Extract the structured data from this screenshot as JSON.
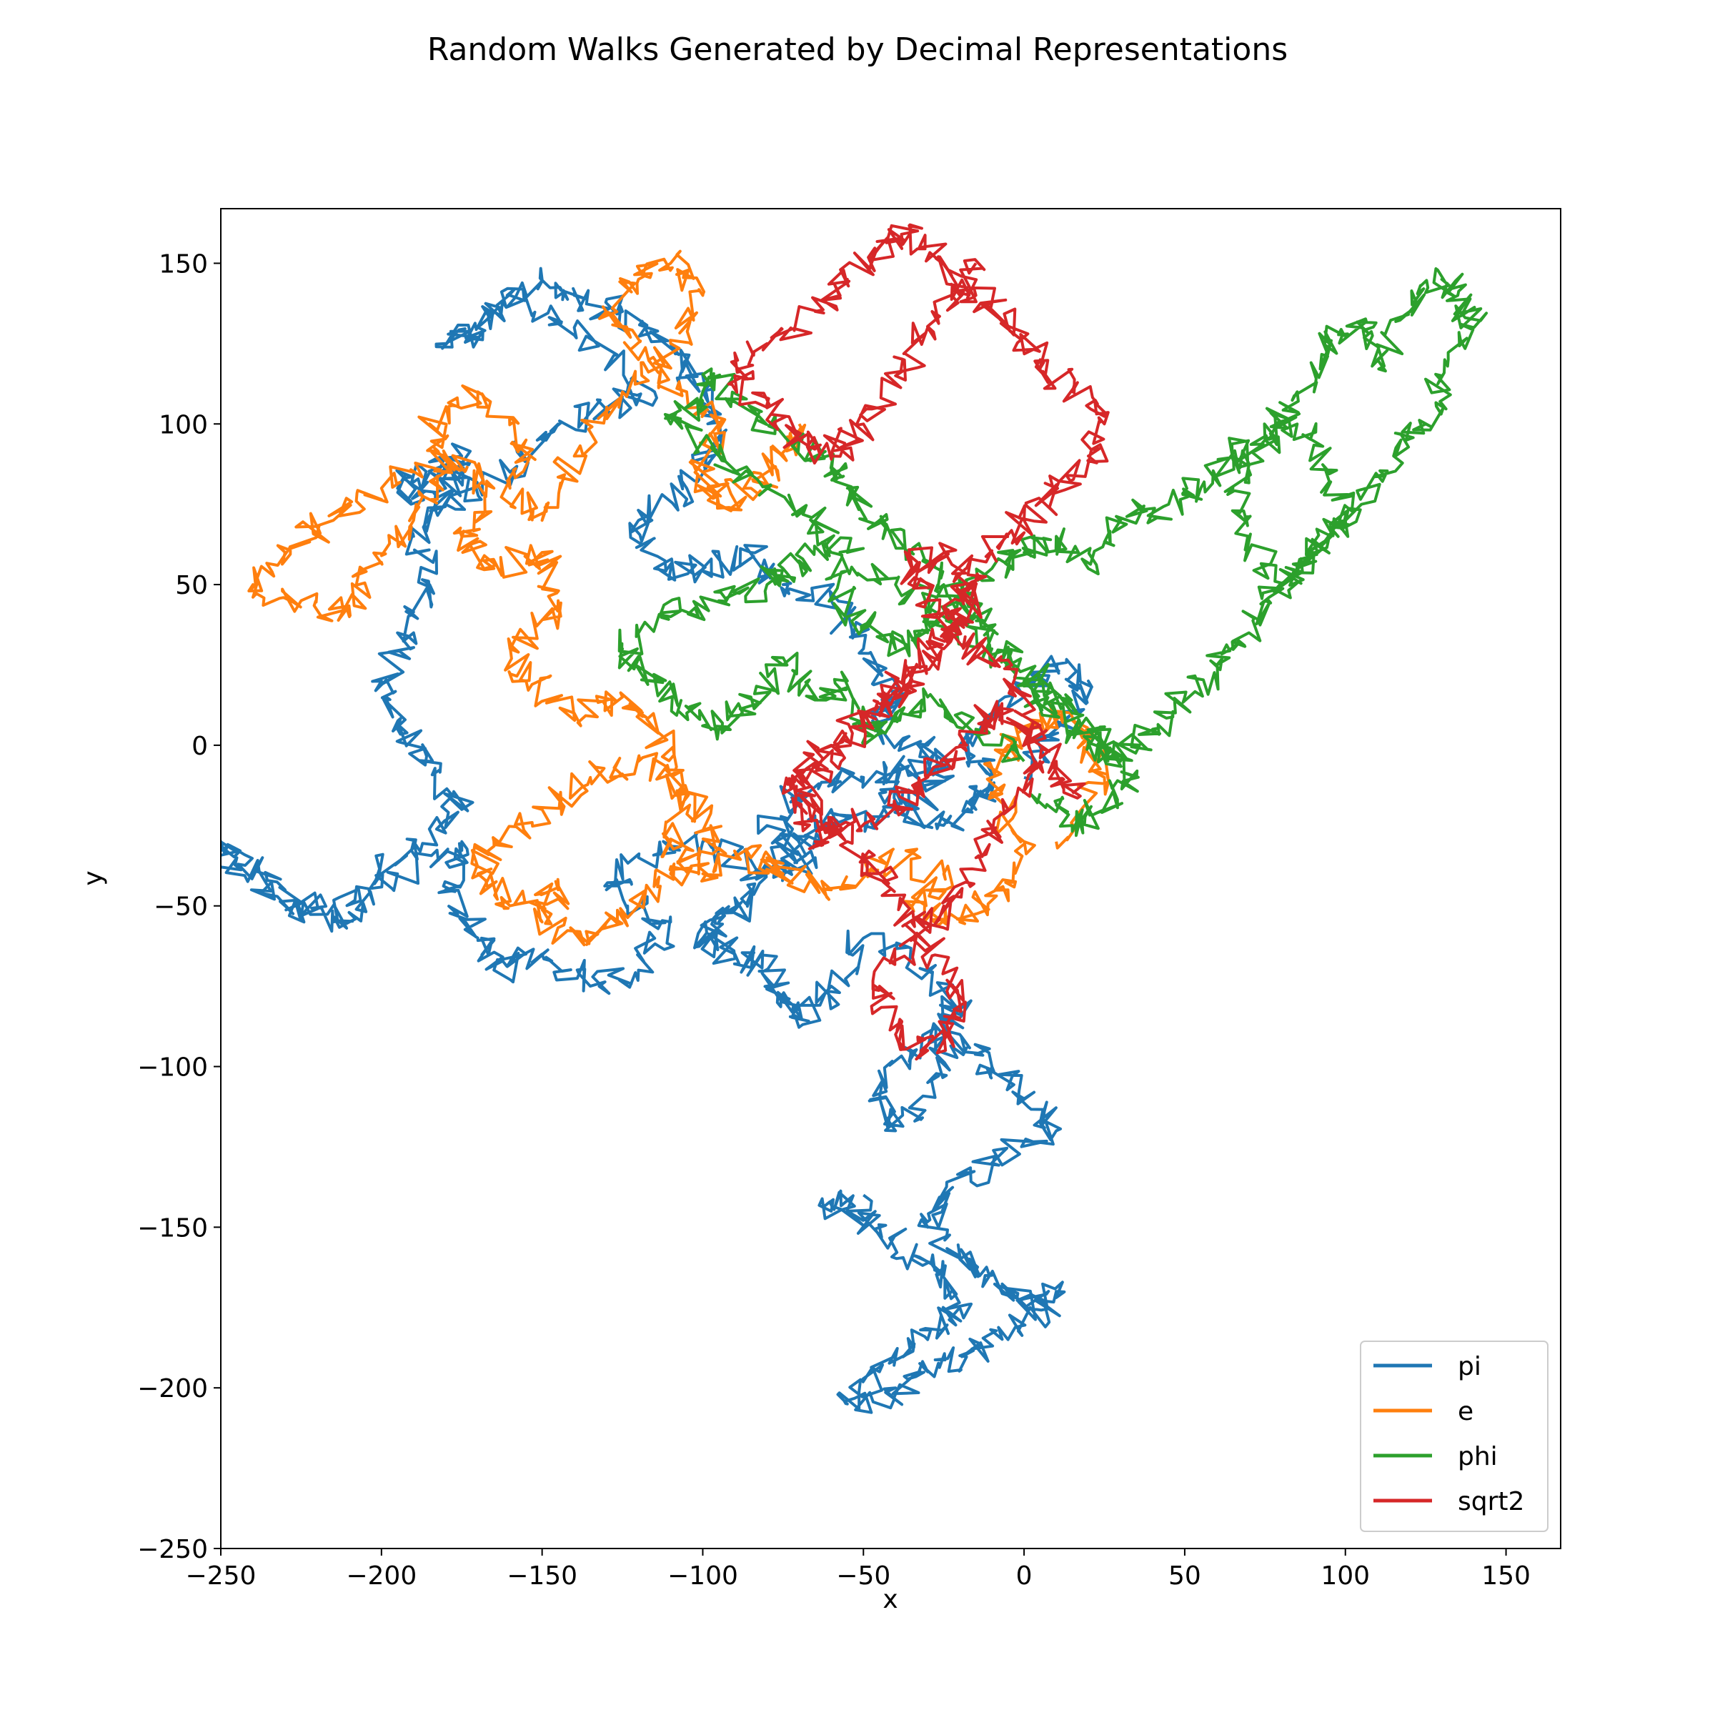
{
  "chart_data": {
    "type": "line",
    "title": "Random Walks Generated by Decimal Representations",
    "xlabel": "x",
    "ylabel": "y",
    "xlim": [
      -250,
      167
    ],
    "ylim": [
      -250,
      167
    ],
    "xticks": [
      -250,
      -200,
      -150,
      -100,
      -50,
      0,
      50,
      100,
      150
    ],
    "yticks": [
      -250,
      -200,
      -150,
      -100,
      -50,
      0,
      50,
      100,
      150
    ],
    "xtick_labels": [
      "−250",
      "−200",
      "−150",
      "−100",
      "−50",
      "0",
      "50",
      "100",
      "150"
    ],
    "ytick_labels": [
      "−250",
      "−200",
      "−150",
      "−100",
      "−50",
      "0",
      "50",
      "100",
      "150"
    ],
    "grid": false,
    "legend_position": "lower-right",
    "series": [
      {
        "name": "pi",
        "color": "#1f77b4",
        "x": [
          0,
          10,
          20,
          10,
          0,
          -20,
          -10,
          -15,
          -30,
          -45,
          -30,
          -50,
          -70,
          -80,
          -65,
          -80,
          -100,
          -120,
          -130,
          -110,
          -120,
          -135,
          -150,
          -165,
          -170,
          -180,
          -175,
          -195,
          -210,
          -230,
          -245,
          -250,
          -230,
          -215,
          -200,
          -190,
          -175,
          -185,
          -195,
          -200,
          -190,
          -185,
          -190,
          -180,
          -175,
          -185,
          -195,
          -180,
          -160,
          -145,
          -130,
          -115,
          -140,
          -160,
          -170,
          -180,
          -165,
          -150,
          -140,
          -125,
          -110,
          -100,
          -95,
          -105,
          -120,
          -115,
          -100,
          -85,
          -75,
          -60,
          -50,
          -40,
          -45,
          -30,
          -25,
          -35,
          -50,
          -60,
          -70,
          -80,
          -85,
          -95,
          -100,
          -90,
          -80,
          -75,
          -70,
          -60,
          -50,
          -30,
          -20,
          -35,
          -45,
          -40,
          -30,
          -20,
          -10,
          0,
          10,
          -10,
          -25,
          -30,
          -20,
          -10,
          0,
          10,
          -5,
          -20,
          -30,
          -40,
          -55,
          -45,
          -30,
          -20,
          -25,
          -35,
          -45,
          -60,
          -50
        ],
        "y": [
          -10,
          5,
          20,
          25,
          15,
          0,
          -10,
          -20,
          -25,
          -15,
          -5,
          -10,
          -15,
          -25,
          -35,
          -40,
          -30,
          -35,
          -45,
          -55,
          -70,
          -75,
          -65,
          -70,
          -60,
          -45,
          -30,
          -40,
          -55,
          -50,
          -35,
          -30,
          -45,
          -55,
          -40,
          -30,
          -20,
          -5,
          5,
          20,
          35,
          50,
          65,
          80,
          90,
          85,
          80,
          75,
          85,
          100,
          105,
          110,
          130,
          140,
          130,
          125,
          135,
          145,
          140,
          135,
          125,
          110,
          95,
          80,
          70,
          55,
          55,
          60,
          50,
          45,
          30,
          15,
          5,
          0,
          -10,
          -20,
          -25,
          -20,
          -30,
          -40,
          -50,
          -55,
          -60,
          -65,
          -70,
          -80,
          -85,
          -75,
          -60,
          -70,
          -85,
          -95,
          -110,
          -120,
          -105,
          -90,
          -100,
          -110,
          -120,
          -130,
          -140,
          -150,
          -160,
          -165,
          -175,
          -170,
          -185,
          -190,
          -195,
          -200,
          -205,
          -195,
          -185,
          -175,
          -165,
          -160,
          -150,
          -145,
          -140
        ]
      },
      {
        "name": "e",
        "color": "#ff7f0e",
        "x": [
          10,
          25,
          20,
          5,
          -5,
          -10,
          0,
          -5,
          -20,
          -35,
          -25,
          -45,
          -60,
          -75,
          -85,
          -100,
          -110,
          -105,
          -120,
          -135,
          -150,
          -165,
          -170,
          -160,
          -145,
          -150,
          -135,
          -120,
          -110,
          -95,
          -105,
          -115,
          -125,
          -140,
          -155,
          -160,
          -145,
          -150,
          -165,
          -175,
          -165,
          -180,
          -200,
          -215,
          -230,
          -240,
          -225,
          -210,
          -205,
          -190,
          -180,
          -185,
          -170,
          -155,
          -160,
          -150,
          -140,
          -125,
          -110,
          -100,
          -110,
          -120,
          -130,
          -120,
          -105,
          -95,
          -100,
          -95,
          -85,
          -75,
          -70
        ],
        "y": [
          -30,
          -10,
          5,
          10,
          0,
          -15,
          -30,
          -45,
          -55,
          -50,
          -40,
          -35,
          -45,
          -40,
          -35,
          -40,
          -30,
          -15,
          -5,
          -10,
          -20,
          -30,
          -40,
          -50,
          -45,
          -55,
          -60,
          -50,
          -40,
          -30,
          -15,
          5,
          15,
          10,
          20,
          30,
          45,
          60,
          55,
          65,
          80,
          90,
          80,
          70,
          60,
          50,
          45,
          40,
          55,
          70,
          85,
          100,
          110,
          95,
          80,
          70,
          90,
          110,
          125,
          140,
          150,
          145,
          135,
          120,
          110,
          100,
          85,
          75,
          80,
          90,
          100
        ]
      },
      {
        "name": "phi",
        "color": "#2ca02c",
        "x": [
          0,
          -15,
          -30,
          -40,
          -50,
          -55,
          -65,
          -75,
          -85,
          -95,
          -105,
          -115,
          -125,
          -110,
          -95,
          -80,
          -75,
          -60,
          -55,
          -40,
          -30,
          -20,
          -10,
          0,
          10,
          20,
          30,
          45,
          55,
          65,
          75,
          85,
          95,
          100,
          90,
          80,
          70,
          65,
          75,
          85,
          95,
          105,
          110,
          120,
          130,
          135,
          140,
          130,
          125,
          115,
          105,
          95,
          85,
          75,
          70,
          60,
          50,
          40,
          30,
          20,
          10,
          0,
          -10,
          -25,
          -40,
          -55,
          -65,
          -80,
          -95,
          -110,
          -100,
          -95,
          -85,
          -70,
          -60,
          -55,
          -45,
          -35,
          -25,
          -15,
          -5,
          5,
          15,
          25,
          35,
          25,
          15,
          5
        ],
        "y": [
          -5,
          5,
          15,
          10,
          0,
          20,
          15,
          25,
          15,
          5,
          10,
          20,
          30,
          40,
          45,
          50,
          55,
          60,
          40,
          30,
          35,
          45,
          55,
          60,
          65,
          55,
          70,
          75,
          80,
          90,
          95,
          100,
          85,
          70,
          60,
          50,
          65,
          80,
          95,
          110,
          125,
          130,
          120,
          135,
          145,
          140,
          130,
          115,
          100,
          90,
          75,
          65,
          55,
          45,
          35,
          25,
          15,
          5,
          -5,
          0,
          10,
          20,
          30,
          40,
          50,
          60,
          70,
          80,
          90,
          100,
          110,
          115,
          105,
          95,
          85,
          80,
          70,
          60,
          50,
          40,
          30,
          20,
          10,
          0,
          -10,
          -20,
          -25,
          -15
        ]
      },
      {
        "name": "sqrt2",
        "color": "#d62728",
        "x": [
          15,
          10,
          0,
          -10,
          -20,
          -30,
          -40,
          -55,
          -65,
          -75,
          -60,
          -45,
          -35,
          -25,
          -20,
          -15,
          -25,
          -35,
          -30,
          -20,
          -10,
          0,
          5,
          -5,
          -15,
          -25,
          -35,
          -45,
          -40,
          -30,
          -20,
          -25,
          -35,
          -45,
          -55,
          -65,
          -70,
          -60,
          -50,
          -40,
          -30,
          -20,
          -10,
          0,
          10,
          20,
          25,
          15,
          5,
          -5,
          -15,
          -25,
          -35,
          -45,
          -55,
          -65,
          -80,
          -90,
          -80,
          -70,
          -60,
          -50,
          -40,
          -30,
          -20,
          -15
        ],
        "y": [
          -15,
          -5,
          5,
          10,
          0,
          -10,
          -20,
          -25,
          -30,
          -15,
          -5,
          10,
          20,
          30,
          40,
          50,
          60,
          55,
          45,
          35,
          25,
          15,
          -5,
          -20,
          -35,
          -50,
          -60,
          -75,
          -90,
          -95,
          -85,
          -70,
          -55,
          -40,
          -30,
          -20,
          -10,
          0,
          10,
          20,
          30,
          45,
          60,
          70,
          80,
          90,
          100,
          110,
          120,
          130,
          140,
          150,
          160,
          155,
          145,
          135,
          125,
          115,
          105,
          95,
          90,
          100,
          115,
          130,
          140,
          150
        ]
      }
    ]
  }
}
